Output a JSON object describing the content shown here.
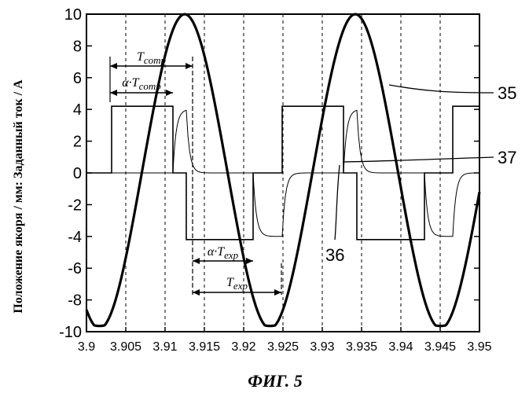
{
  "chart_data": {
    "type": "line",
    "title": "",
    "caption": "ФИГ. 5",
    "xlabel": "",
    "ylabel": "Положение якоря / мм: Заданный ток / А",
    "xlim": [
      3.9,
      3.95
    ],
    "ylim": [
      -10,
      10
    ],
    "x_ticks": [
      "3.9",
      "3.905",
      "3.91",
      "3.915",
      "3.92",
      "3.925",
      "3.93",
      "3.935",
      "3.94",
      "3.945",
      "3.95"
    ],
    "y_ticks": [
      "10",
      "8",
      "6",
      "4",
      "2",
      "0",
      "-2",
      "-4",
      "-6",
      "-8",
      "-10"
    ],
    "grid": "vertical dashed",
    "series": [
      {
        "name": "35",
        "style": "thick",
        "description_points": {
          "x": [
            3.9,
            3.903,
            3.9125,
            3.922,
            3.9247,
            3.9342,
            3.9437,
            3.9464,
            3.95
          ],
          "y": [
            -7.8,
            -9.6,
            9.8,
            -9.6,
            -9.6,
            9.8,
            -9.6,
            -9.6,
            -6.0
          ]
        }
      },
      {
        "name": "37",
        "style": "thin square",
        "x": [
          3.9,
          3.9032,
          3.9032,
          3.911,
          3.911,
          3.9127,
          3.9127,
          3.9212,
          3.9212,
          3.9249,
          3.9249,
          3.9327,
          3.9327,
          3.9344,
          3.9344,
          3.943,
          3.943,
          3.9466,
          3.9466,
          3.95
        ],
        "y": [
          0,
          0,
          4.2,
          4.2,
          0,
          0,
          -4.2,
          -4.2,
          0,
          0,
          4.2,
          4.2,
          0,
          0,
          -4.2,
          -4.2,
          0,
          0,
          4.2,
          4.2
        ]
      },
      {
        "name": "36",
        "style": "thin smoothed",
        "x": [
          3.9,
          3.9032,
          3.911,
          3.9127,
          3.9212,
          3.9249,
          3.9327,
          3.9344,
          3.943,
          3.9466,
          3.95
        ],
        "y": [
          0,
          0,
          4.0,
          0,
          -4.0,
          0,
          4.0,
          0,
          -4.0,
          0,
          4.0
        ]
      }
    ],
    "annotations": {
      "t_comp": "T",
      "t_comp_sub": "comp",
      "alpha_t_comp": "α·T",
      "alpha_t_comp_sub": "comp",
      "alpha_t_exp": "α·T",
      "alpha_t_exp_sub": "exp",
      "t_exp": "T",
      "t_exp_sub": "exp"
    },
    "callouts": [
      "35",
      "37",
      "36"
    ]
  }
}
